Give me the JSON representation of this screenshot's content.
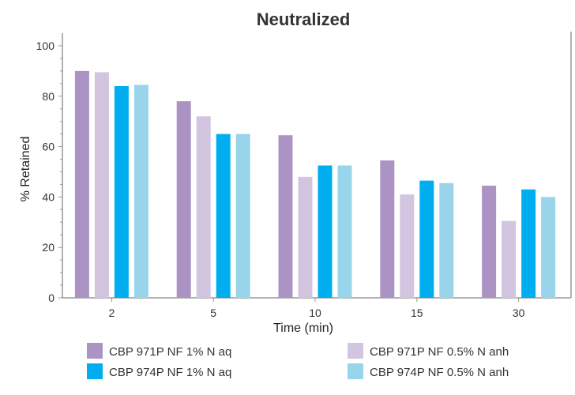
{
  "chart_data": {
    "type": "bar",
    "title": "Neutralized",
    "xlabel": "Time (min)",
    "ylabel": "% Retained",
    "categories": [
      "2",
      "5",
      "10",
      "15",
      "30"
    ],
    "ylim": [
      0,
      105
    ],
    "yticks": [
      0,
      20,
      40,
      60,
      80,
      100
    ],
    "grid": false,
    "legend_position": "bottom",
    "series": [
      {
        "name": "CBP 971P NF 1% N aq",
        "color": "#ab94c4",
        "values": [
          90,
          78,
          64.5,
          54.5,
          44.5
        ]
      },
      {
        "name": "CBP 971P NF 0.5% N anh",
        "color": "#d3c4e0",
        "values": [
          89.5,
          72,
          48,
          41,
          30.5
        ]
      },
      {
        "name": "CBP 974P NF 1% N aq",
        "color": "#00aeef",
        "values": [
          84,
          65,
          52.5,
          46.5,
          43
        ]
      },
      {
        "name": "CBP 974P NF 0.5% N anh",
        "color": "#98d4ea",
        "values": [
          84.5,
          65,
          52.5,
          45.5,
          40
        ]
      }
    ]
  }
}
